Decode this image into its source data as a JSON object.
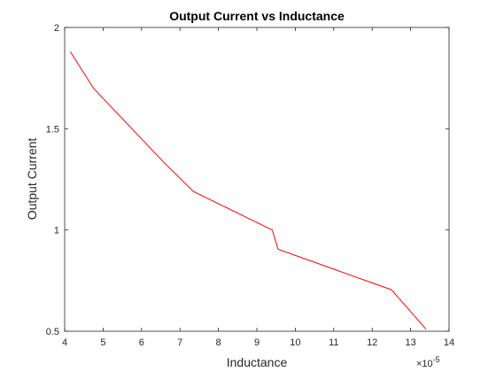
{
  "chart_data": {
    "type": "line",
    "title": "Output Current vs Inductance",
    "xlabel": "Inductance",
    "ylabel": "Output Current",
    "x_exponent_base": "×10",
    "x_exponent_power": "-5",
    "xlim": [
      4,
      14
    ],
    "ylim": [
      0.5,
      2
    ],
    "x_ticks": [
      4,
      5,
      6,
      7,
      8,
      9,
      10,
      11,
      12,
      13,
      14
    ],
    "x_tick_labels": [
      "4",
      "5",
      "6",
      "7",
      "8",
      "9",
      "10",
      "11",
      "12",
      "13",
      "14"
    ],
    "y_ticks": [
      0.5,
      1,
      1.5,
      2
    ],
    "y_tick_labels": [
      "0.5",
      "1",
      "1.5",
      "2"
    ],
    "grid": false,
    "series": [
      {
        "color": "#ff0000",
        "x": [
          4.15,
          4.75,
          6.6,
          7.35,
          9.4,
          9.55,
          12.5,
          13.4
        ],
        "y": [
          1.88,
          1.7,
          1.33,
          1.19,
          1.0,
          0.905,
          0.705,
          0.51
        ]
      }
    ]
  }
}
